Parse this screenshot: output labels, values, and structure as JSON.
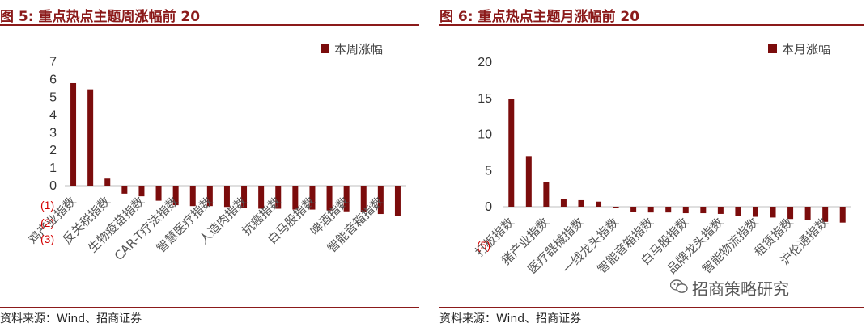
{
  "left_figure": {
    "title": "图 5:  重点热点主题周涨幅前 20",
    "source": "资料来源：Wind、招商证券",
    "annotations": [
      "(1)",
      "(2)",
      "(3)"
    ]
  },
  "right_figure": {
    "title": "图 6:  重点热点主题月涨幅前 20",
    "source": "资料来源：Wind、招商证券",
    "annotations": [
      "(5)"
    ]
  },
  "watermark": "招商策略研究",
  "colors": {
    "bar": "#7b0c0c",
    "title": "#8b1a1a",
    "annotation": "#d40000"
  },
  "chart_data": [
    {
      "type": "bar",
      "legend": "本周涨幅",
      "legend_position": "top-right",
      "ylim": [
        -2,
        7
      ],
      "yticks": [
        0,
        1,
        2,
        3,
        4,
        5,
        6,
        7
      ],
      "grid": false,
      "categories": [
        "鸡产业指数",
        "",
        "反关税指数",
        "",
        "生物疫苗指数",
        "",
        "CAR-T疗法指数",
        "",
        "智慧医疗指数",
        "",
        "人造肉指数",
        "",
        "抗癌指数",
        "",
        "白马股指数",
        "",
        "啤酒指数",
        "",
        "智能音箱指数",
        ""
      ],
      "values": [
        5.8,
        5.45,
        0.4,
        -0.45,
        -0.6,
        -0.85,
        -1.1,
        -1.15,
        -1.15,
        -1.2,
        -1.25,
        -1.3,
        -1.3,
        -1.35,
        -1.35,
        -1.4,
        -1.45,
        -1.5,
        -1.6,
        -1.7
      ]
    },
    {
      "type": "bar",
      "legend": "本月涨幅",
      "legend_position": "top-right",
      "ylim": [
        -3,
        20
      ],
      "yticks": [
        0,
        5,
        10,
        15,
        20
      ],
      "grid": false,
      "categories": [
        "打板指数",
        "",
        "猪产业指数",
        "",
        "医疗器械指数",
        "",
        "一线龙头指数",
        "",
        "智能音箱指数",
        "",
        "白马股指数",
        "",
        "品牌龙头指数",
        "",
        "智能物流指数",
        "",
        "租赁指数",
        "",
        "沪伦通指数",
        ""
      ],
      "values": [
        14.9,
        7.0,
        3.4,
        1.1,
        0.9,
        0.7,
        -0.2,
        -0.7,
        -0.8,
        -0.8,
        -0.9,
        -0.9,
        -1.0,
        -1.3,
        -1.4,
        -1.5,
        -1.7,
        -1.9,
        -2.1,
        -2.2
      ]
    }
  ]
}
